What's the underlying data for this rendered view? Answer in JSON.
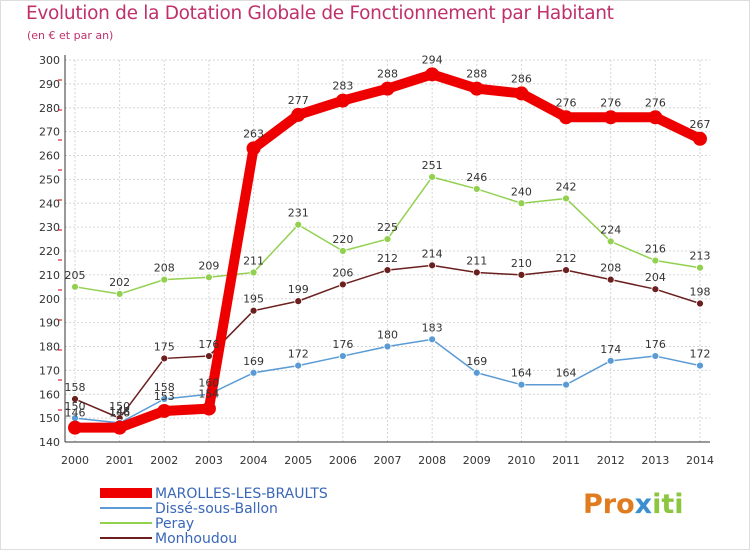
{
  "chart_data": {
    "type": "line",
    "title": "Evolution de la Dotation Globale de Fonctionnement par Habitant",
    "subtitle": "(en € et par an)",
    "x": [
      "2000",
      "2001",
      "2002",
      "2003",
      "2004",
      "2005",
      "2006",
      "2007",
      "2008",
      "2009",
      "2010",
      "2011",
      "2012",
      "2013",
      "2014"
    ],
    "ylim": [
      140,
      300
    ],
    "yticks": [
      140,
      150,
      160,
      170,
      180,
      190,
      200,
      210,
      220,
      230,
      240,
      250,
      260,
      270,
      280,
      290,
      300
    ],
    "grid": true,
    "legend_position": "bottom-left",
    "series": [
      {
        "name": "MAROLLES-LES-BRAULTS",
        "color": "#ee0000",
        "values": [
          146,
          146,
          153,
          154,
          263,
          277,
          283,
          288,
          294,
          288,
          286,
          276,
          276,
          276,
          267
        ]
      },
      {
        "name": "Dissé-sous-Ballon",
        "color": "#5b9bd5",
        "values": [
          150,
          148,
          158,
          160,
          169,
          172,
          176,
          180,
          183,
          169,
          164,
          164,
          174,
          176,
          172
        ]
      },
      {
        "name": "Peray",
        "color": "#92d050",
        "values": [
          205,
          202,
          208,
          209,
          211,
          231,
          220,
          225,
          251,
          246,
          240,
          242,
          224,
          216,
          213
        ]
      },
      {
        "name": "Monhoudou",
        "color": "#6b1f1f",
        "values": [
          158,
          150,
          175,
          176,
          195,
          199,
          206,
          212,
          214,
          211,
          210,
          212,
          208,
          204,
          198
        ]
      }
    ]
  },
  "logo": {
    "part1": "Pro",
    "part2": "x",
    "part3": "iti"
  }
}
